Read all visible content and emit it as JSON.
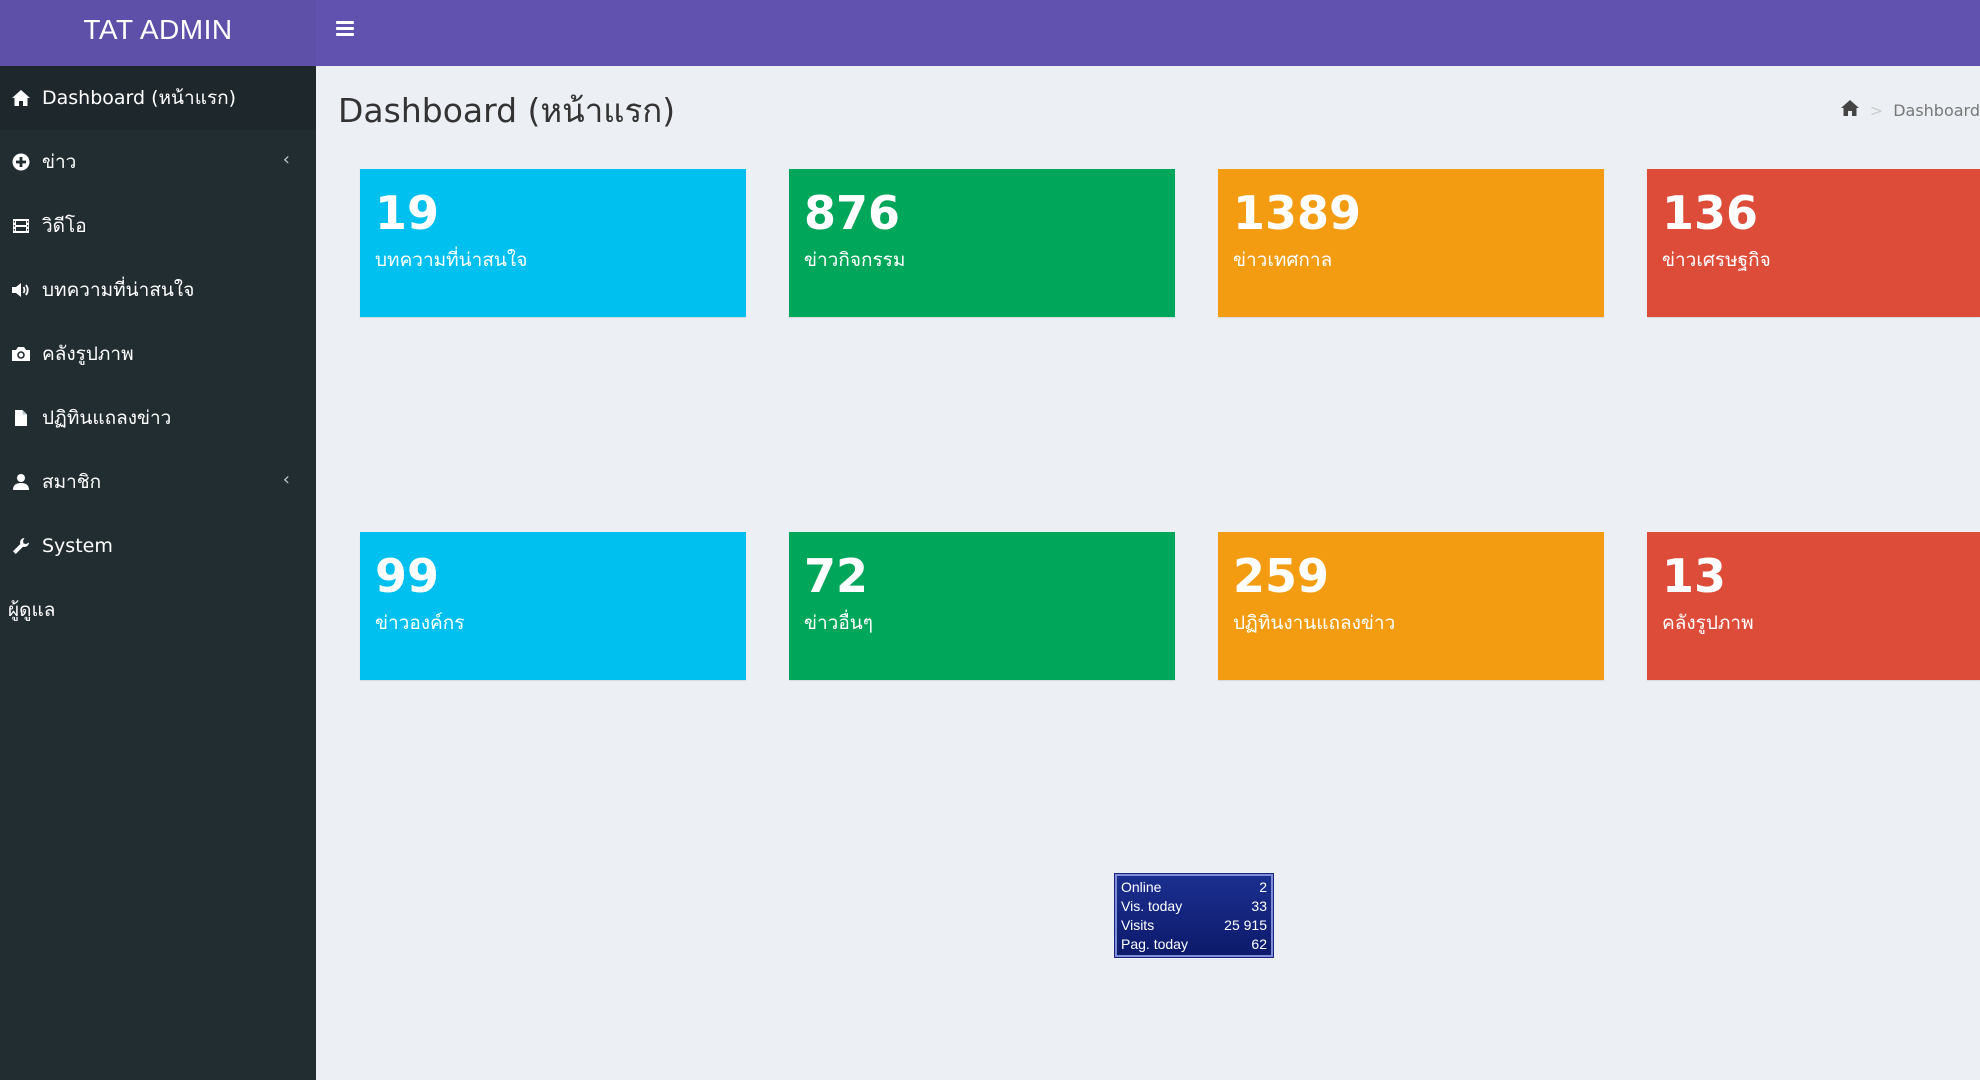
{
  "header": {
    "brand": "TAT ADMIN"
  },
  "sidebar": {
    "items": [
      {
        "label": "Dashboard (หน้าแรก)",
        "icon": "home-icon",
        "active": true,
        "has_submenu": false
      },
      {
        "label": "ข่าว",
        "icon": "plus-circle-icon",
        "has_submenu": true
      },
      {
        "label": "วิดีโอ",
        "icon": "film-icon",
        "has_submenu": false
      },
      {
        "label": "บทความที่น่าสนใจ",
        "icon": "volume-icon",
        "has_submenu": false
      },
      {
        "label": "คลังรูปภาพ",
        "icon": "camera-icon",
        "has_submenu": false
      },
      {
        "label": "ปฏิทินแถลงข่าว",
        "icon": "file-icon",
        "has_submenu": false
      },
      {
        "label": "สมาชิก",
        "icon": "user-icon",
        "has_submenu": true
      },
      {
        "label": "System",
        "icon": "wrench-icon",
        "has_submenu": false
      },
      {
        "label": "ผู้ดูแล",
        "icon": "",
        "has_submenu": false
      }
    ]
  },
  "page": {
    "title": "Dashboard (หน้าแรก)",
    "breadcrumb": {
      "current": "Dashboard"
    }
  },
  "stats": [
    {
      "value": "19",
      "label": "บทความที่น่าสนใจ",
      "color": "#00c0ef"
    },
    {
      "value": "876",
      "label": "ข่าวกิจกรรม",
      "color": "#00a65a"
    },
    {
      "value": "1389",
      "label": "ข่าวเทศกาล",
      "color": "#f39c12"
    },
    {
      "value": "136",
      "label": "ข่าวเศรษฐกิจ",
      "color": "#dd4b39"
    },
    {
      "value": "99",
      "label": "ข่าวองค์กร",
      "color": "#00c0ef"
    },
    {
      "value": "72",
      "label": "ข่าวอื่นๆ",
      "color": "#00a65a"
    },
    {
      "value": "259",
      "label": "ปฏิทินงานแถลงข่าว",
      "color": "#f39c12"
    },
    {
      "value": "13",
      "label": "คลังรูปภาพ",
      "color": "#dd4b39"
    }
  ],
  "counter": {
    "rows": [
      {
        "label": "Online",
        "value": "2"
      },
      {
        "label": "Vis. today",
        "value": "33"
      },
      {
        "label": "Visits",
        "value": "25 915"
      },
      {
        "label": "Pag. today",
        "value": "62"
      }
    ]
  }
}
